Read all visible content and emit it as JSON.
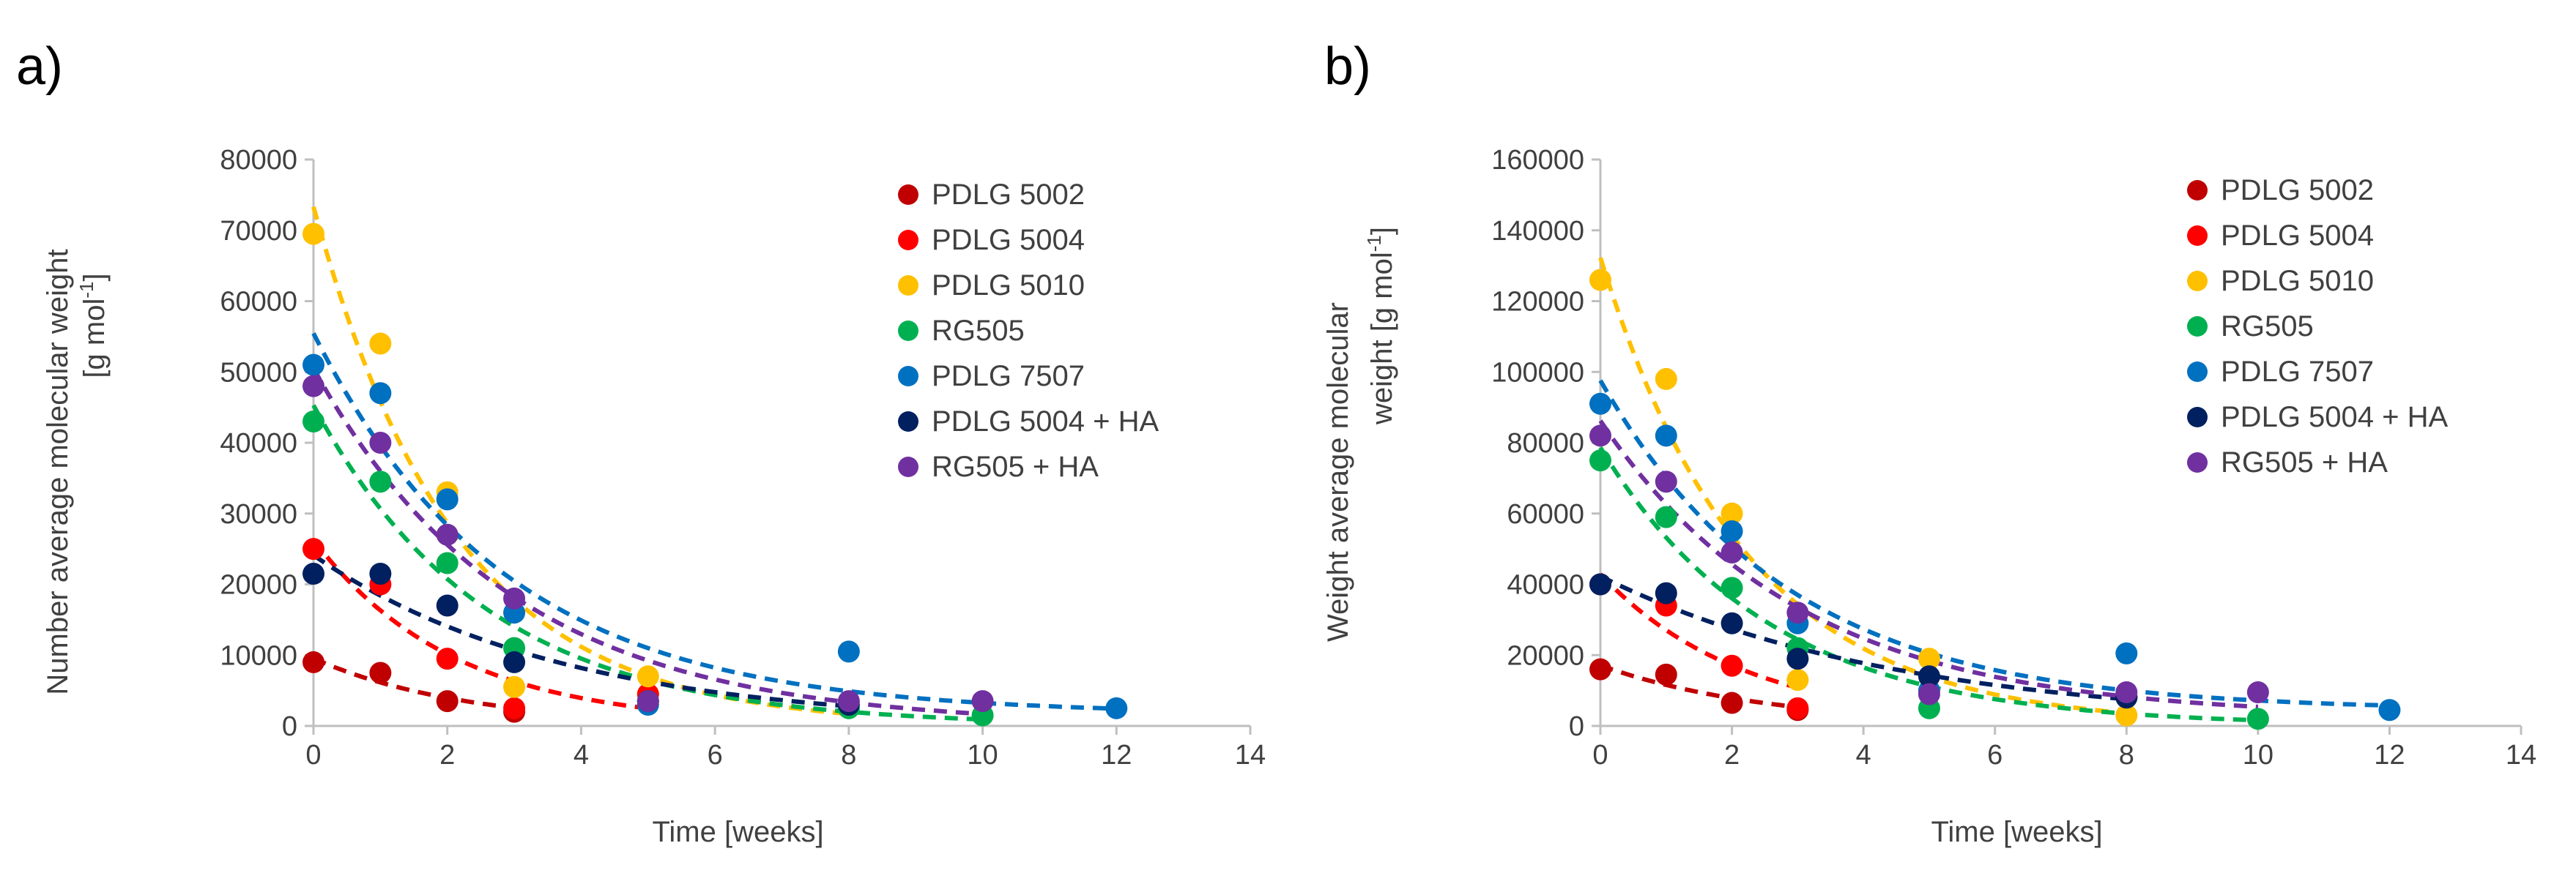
{
  "chart_data": [
    {
      "type": "scatter",
      "panel_label": "a)",
      "xlabel": "Time [weeks]",
      "ylabel_line1": "Number average molecular weight",
      "ylabel_line2": "[g mol",
      "ylabel_sup": "-1",
      "ylabel_close": "]",
      "xlim": [
        0,
        14
      ],
      "ylim": [
        0,
        80000
      ],
      "xticks": [
        0,
        2,
        4,
        6,
        8,
        10,
        12,
        14
      ],
      "yticks": [
        0,
        10000,
        20000,
        30000,
        40000,
        50000,
        60000,
        70000,
        80000
      ],
      "grid": false,
      "legend_position": "top-right",
      "series": [
        {
          "name": "PDLG 5002",
          "color": "#c00000",
          "x": [
            0,
            1,
            2,
            3
          ],
          "y": [
            9000,
            7500,
            3500,
            2000
          ]
        },
        {
          "name": "PDLG 5004",
          "color": "#ff0000",
          "x": [
            0,
            1,
            2,
            3,
            5
          ],
          "y": [
            25000,
            20000,
            9500,
            2500,
            4500
          ]
        },
        {
          "name": "PDLG 5010",
          "color": "#ffc000",
          "x": [
            0,
            1,
            2,
            3,
            5,
            8
          ],
          "y": [
            69500,
            54000,
            33000,
            5500,
            7000,
            3000
          ]
        },
        {
          "name": "RG505",
          "color": "#00b050",
          "x": [
            0,
            1,
            2,
            3,
            5,
            8,
            10
          ],
          "y": [
            43000,
            34500,
            23000,
            11000,
            3500,
            2500,
            1500
          ]
        },
        {
          "name": "PDLG 7507",
          "color": "#0070c0",
          "x": [
            0,
            1,
            2,
            3,
            5,
            8,
            12
          ],
          "y": [
            51000,
            47000,
            32000,
            16000,
            3000,
            10500,
            2500
          ]
        },
        {
          "name": "PDLG 5004 + HA",
          "color": "#002060",
          "x": [
            0,
            1,
            2,
            3,
            5,
            8
          ],
          "y": [
            21500,
            21500,
            17000,
            9000,
            3500,
            3000
          ]
        },
        {
          "name": "RG505 + HA",
          "color": "#7030a0",
          "x": [
            0,
            1,
            2,
            3,
            5,
            8,
            10
          ],
          "y": [
            48000,
            40000,
            27000,
            18000,
            3500,
            3500,
            3500
          ]
        }
      ]
    },
    {
      "type": "scatter",
      "panel_label": "b)",
      "xlabel": "Time [weeks]",
      "ylabel_line1": "Weight average molecular",
      "ylabel_line2": "weight [g mol",
      "ylabel_sup": "-1",
      "ylabel_close": "]",
      "xlim": [
        0,
        14
      ],
      "ylim": [
        0,
        160000
      ],
      "xticks": [
        0,
        2,
        4,
        6,
        8,
        10,
        12,
        14
      ],
      "yticks": [
        0,
        20000,
        40000,
        60000,
        80000,
        100000,
        120000,
        140000,
        160000
      ],
      "grid": false,
      "legend_position": "top-right",
      "series": [
        {
          "name": "PDLG 5002",
          "color": "#c00000",
          "x": [
            0,
            1,
            2,
            3
          ],
          "y": [
            16000,
            14500,
            6500,
            4500
          ]
        },
        {
          "name": "PDLG 5004",
          "color": "#ff0000",
          "x": [
            0,
            1,
            2,
            3
          ],
          "y": [
            40000,
            34000,
            17000,
            5000
          ]
        },
        {
          "name": "PDLG 5010",
          "color": "#ffc000",
          "x": [
            0,
            1,
            2,
            3,
            5,
            8
          ],
          "y": [
            126000,
            98000,
            60000,
            13000,
            19000,
            3000
          ]
        },
        {
          "name": "RG505",
          "color": "#00b050",
          "x": [
            0,
            1,
            2,
            3,
            5,
            10
          ],
          "y": [
            75000,
            59000,
            39000,
            22000,
            5000,
            2000
          ]
        },
        {
          "name": "PDLG 7507",
          "color": "#0070c0",
          "x": [
            0,
            1,
            2,
            3,
            5,
            8,
            12
          ],
          "y": [
            91000,
            82000,
            55000,
            29000,
            10000,
            20500,
            4500
          ]
        },
        {
          "name": "PDLG 5004 + HA",
          "color": "#002060",
          "x": [
            0,
            1,
            2,
            3,
            5,
            8
          ],
          "y": [
            40000,
            37500,
            29000,
            19000,
            14000,
            8000
          ]
        },
        {
          "name": "RG505 + HA",
          "color": "#7030a0",
          "x": [
            0,
            1,
            2,
            3,
            5,
            8,
            10
          ],
          "y": [
            82000,
            69000,
            49000,
            32000,
            9000,
            9500,
            9500
          ]
        }
      ]
    }
  ]
}
